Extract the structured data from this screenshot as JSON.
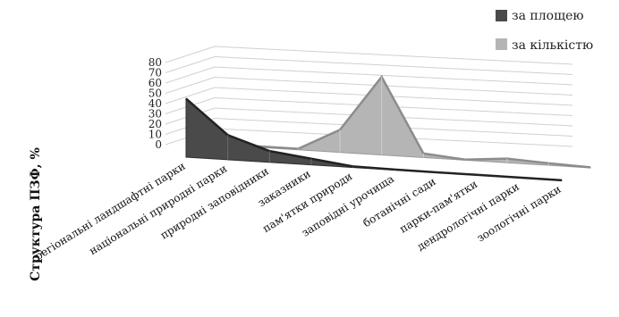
{
  "chart_data": {
    "type": "area",
    "ylabel": "Структура ПЗФ, %",
    "ylim": [
      0,
      80
    ],
    "yticks": [
      0,
      10,
      20,
      30,
      40,
      50,
      60,
      70,
      80
    ],
    "categories": [
      "регіональні ландшафтні парки",
      "національні природні парки",
      "природні заповідники",
      "заказники",
      "пам'ятки природи",
      "заповідні урочища",
      "ботанічні сади",
      "парки-пам'ятки",
      "дендрологічні парки",
      "зоологічні парки"
    ],
    "series": [
      {
        "name": "за площею",
        "color": "#4a4a4a",
        "values": [
          57,
          24,
          11,
          6,
          1,
          0.5,
          0.3,
          0.3,
          0.2,
          0.1
        ]
      },
      {
        "name": "за кількістю",
        "color": "#b5b5b5",
        "values": [
          1,
          1,
          1,
          22,
          76,
          4,
          0.5,
          4,
          2,
          0.5
        ]
      }
    ],
    "legend": "top-right",
    "grid": true
  }
}
